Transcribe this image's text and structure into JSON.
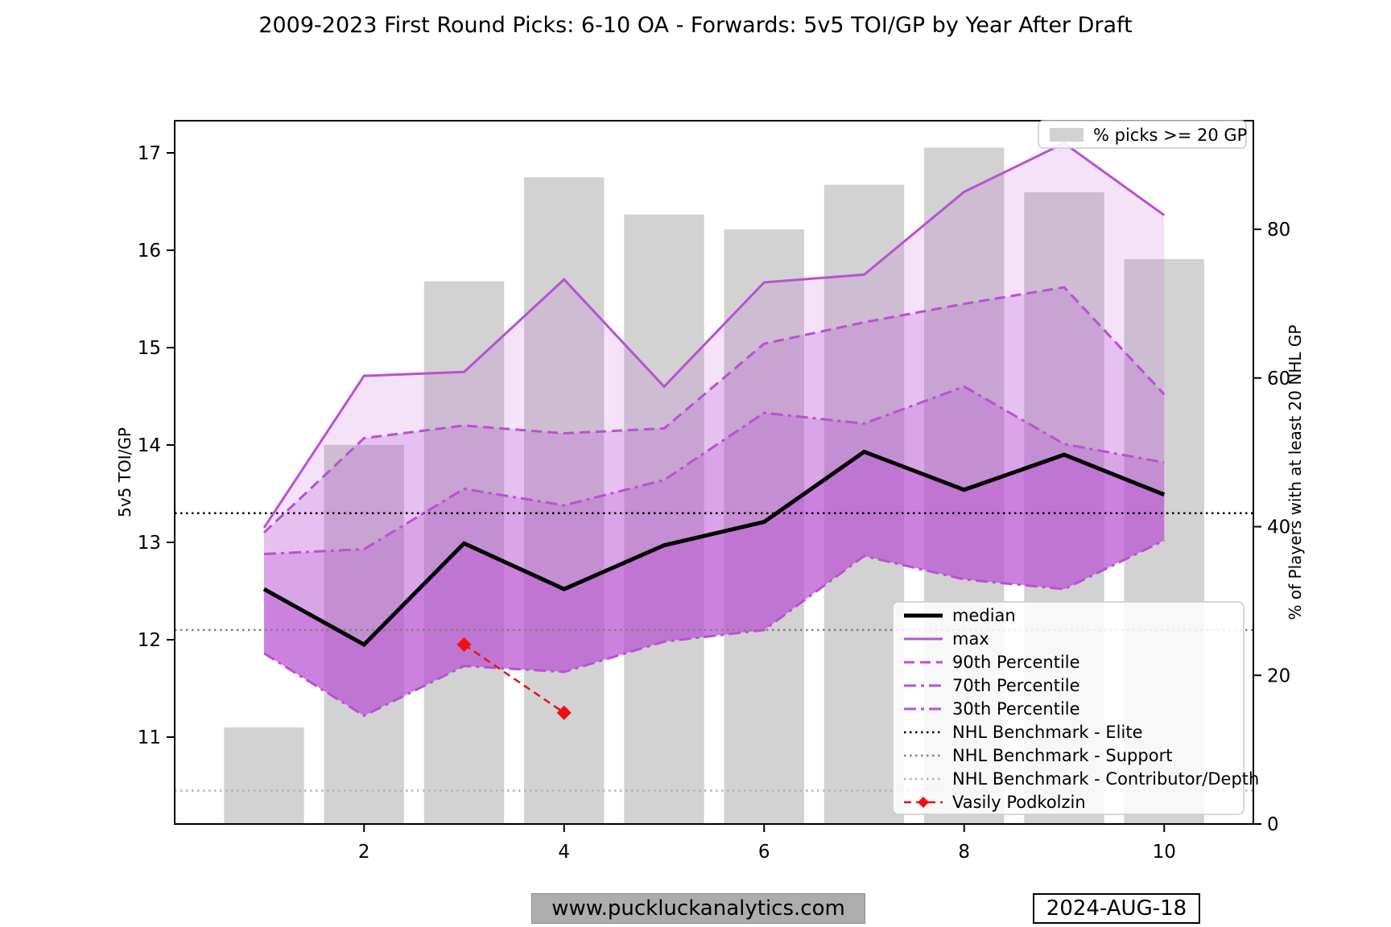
{
  "title": "2009-2023 First Round Picks: 6-10 OA - Forwards: 5v5 TOI/GP by Year After Draft",
  "footer": {
    "website": "www.puckluckanalytics.com",
    "date": "2024-AUG-18"
  },
  "bar_legend_label": "% picks >= 20 GP",
  "legend": [
    {
      "label": "median",
      "style": "median"
    },
    {
      "label": "max",
      "style": "max"
    },
    {
      "label": "90th Percentile",
      "style": "p90"
    },
    {
      "label": "70th Percentile",
      "style": "p70"
    },
    {
      "label": "30th Percentile",
      "style": "p30"
    },
    {
      "label": "NHL Benchmark - Elite",
      "style": "elite"
    },
    {
      "label": "NHL Benchmark - Support",
      "style": "support"
    },
    {
      "label": "NHL Benchmark - Contributor/Depth",
      "style": "contributor"
    },
    {
      "label": "Vasily Podkolzin",
      "style": "podkolzin"
    }
  ],
  "colors": {
    "purple": "#B951D3",
    "black": "#000000",
    "red": "#EE1111",
    "bar_gray": "#D2D2D2",
    "support_gray": "#808080",
    "contributor_gray": "#B3B3B3",
    "legend_border": "#CCCCCC"
  },
  "chart_data": {
    "type": "line+bar",
    "title": "2009-2023 First Round Picks: 6-10 OA - Forwards: 5v5 TOI/GP by Year After Draft",
    "xlabel": "",
    "ylabel_left": "5v5 TOI/GP",
    "ylabel_right": "% of Players with at least 20 NHL GP",
    "x": [
      1,
      2,
      3,
      4,
      5,
      6,
      7,
      8,
      9,
      10
    ],
    "x_ticks": [
      2,
      4,
      6,
      8,
      10
    ],
    "left_ticks": [
      11,
      12,
      13,
      14,
      15,
      16,
      17
    ],
    "right_ticks": [
      0,
      20,
      40,
      60,
      80
    ],
    "left_range": [
      10.11,
      17.33
    ],
    "right_range": [
      0,
      94.6
    ],
    "x_range": [
      0.1,
      10.9
    ],
    "grid": false,
    "series": [
      {
        "name": "max",
        "style": "max",
        "values": [
          13.15,
          14.71,
          14.75,
          15.7,
          14.6,
          15.67,
          15.75,
          16.6,
          17.1,
          16.36
        ]
      },
      {
        "name": "90th Percentile",
        "style": "p90",
        "values": [
          13.1,
          14.07,
          14.2,
          14.12,
          14.17,
          15.04,
          15.26,
          15.45,
          15.62,
          14.52
        ]
      },
      {
        "name": "70th Percentile",
        "style": "p70",
        "values": [
          12.88,
          12.93,
          13.55,
          13.38,
          13.64,
          14.33,
          14.22,
          14.6,
          14.01,
          13.82
        ]
      },
      {
        "name": "median",
        "style": "median",
        "values": [
          12.52,
          11.95,
          12.99,
          12.52,
          12.97,
          13.21,
          13.93,
          13.54,
          13.9,
          13.49
        ]
      },
      {
        "name": "30th Percentile",
        "style": "p30",
        "values": [
          11.86,
          11.22,
          11.73,
          11.67,
          11.98,
          12.1,
          12.86,
          12.62,
          12.52,
          13.02
        ]
      }
    ],
    "bands": [
      {
        "upper": "max",
        "lower": "90th Percentile",
        "opacity": 0.17
      },
      {
        "upper": "90th Percentile",
        "lower": "70th Percentile",
        "opacity": 0.36
      },
      {
        "upper": "70th Percentile",
        "lower": "median",
        "opacity": 0.52
      },
      {
        "upper": "median",
        "lower": "30th Percentile",
        "opacity": 0.72
      }
    ],
    "benchmarks": [
      {
        "name": "NHL Benchmark - Elite",
        "style": "elite",
        "value": 13.3
      },
      {
        "name": "NHL Benchmark - Support",
        "style": "support",
        "value": 12.1
      },
      {
        "name": "NHL Benchmark - Contributor/Depth",
        "style": "contributor",
        "value": 10.45
      }
    ],
    "bars": {
      "name": "% picks >= 20 GP",
      "axis": "right",
      "width_years": 0.8,
      "values_pct": [
        13,
        51,
        73,
        87,
        82,
        80,
        86,
        91,
        85,
        76
      ]
    },
    "player_line": {
      "name": "Vasily Podkolzin",
      "style": "podkolzin",
      "x": [
        3,
        4
      ],
      "values": [
        11.95,
        11.25
      ]
    },
    "legend_positions": {
      "lines": "lower right inside plot",
      "bars": "upper right inside plot"
    }
  }
}
